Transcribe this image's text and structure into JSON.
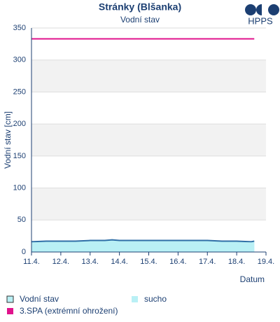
{
  "chart_data": {
    "type": "line",
    "title": "Stránky (Blšanka)",
    "subtitle": "Vodní stav",
    "logo": "HPPS",
    "ylabel": "Vodní stav [cm]",
    "xlabel": "Datum",
    "xlim": [
      0,
      8
    ],
    "xticks": [
      {
        "value": 0,
        "label": "11.4."
      },
      {
        "value": 1,
        "label": "12.4."
      },
      {
        "value": 2,
        "label": "13.4."
      },
      {
        "value": 3,
        "label": "14.4."
      },
      {
        "value": 4,
        "label": "15.4."
      },
      {
        "value": 5,
        "label": "16.4."
      },
      {
        "value": 6,
        "label": "17.4."
      },
      {
        "value": 7,
        "label": "18.4."
      },
      {
        "value": 8,
        "label": "19.4."
      }
    ],
    "ylim": [
      0,
      350
    ],
    "yticks": [
      0,
      50,
      100,
      150,
      200,
      250,
      300,
      350
    ],
    "grid": true,
    "series": [
      {
        "name": "Vodní stav",
        "color": "#2f6fa7",
        "fill": "#b9f0f5",
        "x": [
          0,
          0.5,
          1,
          1.5,
          2,
          2.5,
          2.75,
          3,
          3.5,
          4,
          4.5,
          5,
          5.5,
          6,
          6.5,
          7,
          7.5,
          7.6
        ],
        "values": [
          16,
          17,
          17,
          17,
          18,
          18,
          19,
          18,
          18,
          18,
          18,
          18,
          18,
          18,
          17,
          17,
          16,
          17
        ]
      },
      {
        "name": "sucho",
        "color": "#b9f0f5",
        "x": [
          0,
          7.6
        ],
        "values": [
          15,
          15
        ]
      },
      {
        "name": "3.SPA (extrémní ohrožení)",
        "color": "#e0138c",
        "x": [
          0,
          7.6
        ],
        "values": [
          333,
          333
        ]
      }
    ]
  }
}
